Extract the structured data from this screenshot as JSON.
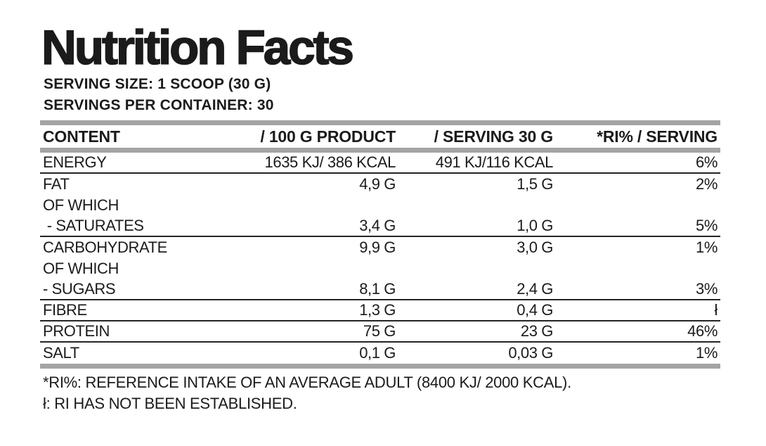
{
  "title": "Nutrition Facts",
  "serving_size": "SERVING SIZE: 1 SCOOP (30 G)",
  "servings_per_container": "SERVINGS PER CONTAINER: 30",
  "table": {
    "headers": [
      "CONTENT",
      "/ 100 G PRODUCT",
      "/ SERVING 30 G",
      "*RI% / SERVING"
    ],
    "rows": [
      {
        "label": "ENERGY",
        "per100": "1635 KJ/ 386 KCAL",
        "per30": "491 KJ/116 KCAL",
        "ri": "6%",
        "rule_below": true
      },
      {
        "label": "FAT",
        "per100": "4,9 G",
        "per30": "1,5 G",
        "ri": "2%",
        "rule_below": false
      },
      {
        "label": "OF WHICH",
        "per100": "",
        "per30": "",
        "ri": "",
        "rule_below": false
      },
      {
        "label": " - SATURATES",
        "per100": "3,4 G",
        "per30": "1,0 G",
        "ri": "5%",
        "rule_below": true
      },
      {
        "label": "CARBOHYDRATE",
        "per100": "9,9 G",
        "per30": "3,0 G",
        "ri": "1%",
        "rule_below": false
      },
      {
        "label": "OF WHICH",
        "per100": "",
        "per30": "",
        "ri": "",
        "rule_below": false
      },
      {
        "label": "- SUGARS",
        "per100": "8,1 G",
        "per30": "2,4 G",
        "ri": "3%",
        "rule_below": true
      },
      {
        "label": "FIBRE",
        "per100": "1,3 G",
        "per30": "0,4 G",
        "ri": "ł",
        "rule_below": true
      },
      {
        "label": "PROTEIN",
        "per100": "75 G",
        "per30": "23 G",
        "ri": "46%",
        "rule_below": true
      },
      {
        "label": "SALT",
        "per100": "0,1 G",
        "per30": "0,03 G",
        "ri": "1%",
        "rule_below": false
      }
    ]
  },
  "footnotes": [
    "*RI%: REFERENCE INTAKE OF AN AVERAGE ADULT (8400 KJ/ 2000 KCAL).",
    "ł: RI HAS NOT BEEN ESTABLISHED."
  ],
  "colors": {
    "bar_gray": "#a4a4a4",
    "text": "#1b1b1b",
    "background": "#ffffff"
  }
}
